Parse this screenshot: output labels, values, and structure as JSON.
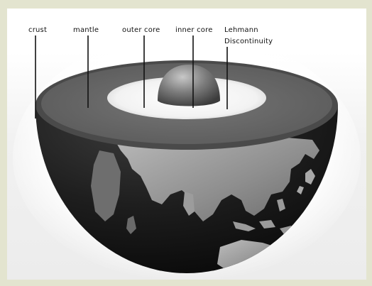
{
  "diagram": {
    "labels": {
      "crust": "crust",
      "mantle": "mantle",
      "outer_core": "outer core",
      "inner_core": "inner core",
      "lehmann_line1": "Lehmann",
      "lehmann_line2": "Discontinuity"
    }
  }
}
